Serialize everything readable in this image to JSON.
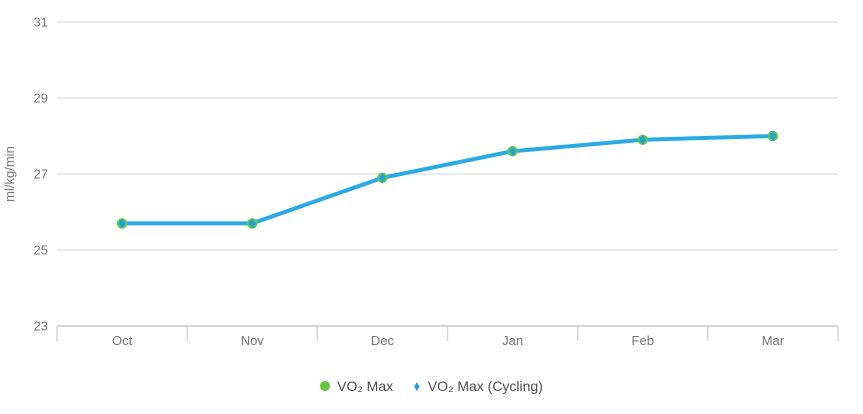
{
  "chart_data": {
    "type": "line",
    "categories": [
      "Oct",
      "Nov",
      "Dec",
      "Jan",
      "Feb",
      "Mar"
    ],
    "series": [
      {
        "name": "VO₂ Max",
        "marker": "circle",
        "color": "#62c93e",
        "values": [
          25.7,
          25.7,
          26.9,
          27.6,
          27.9,
          28.0
        ]
      },
      {
        "name": "VO₂ Max (Cycling)",
        "marker": "diamond",
        "color": "#219fe0",
        "values": [
          25.7,
          25.7,
          26.9,
          27.6,
          27.9,
          28.0
        ]
      }
    ],
    "xlabel": "",
    "ylabel": "ml/kg/min",
    "ylim": [
      23,
      31
    ],
    "yticks": [
      23,
      25,
      27,
      29,
      31
    ],
    "grid": true,
    "legend_position": "bottom",
    "line_color": "#29abe2",
    "grid_color": "#e2e2e2",
    "axis_color": "#d6d6d6",
    "tick_label_color": "#757575"
  },
  "legend": {
    "items": [
      {
        "label": "VO₂ Max",
        "marker": "circle",
        "color": "#62c93e"
      },
      {
        "label": "VO₂ Max (Cycling)",
        "marker": "diamond",
        "color": "#219fe0"
      }
    ]
  }
}
